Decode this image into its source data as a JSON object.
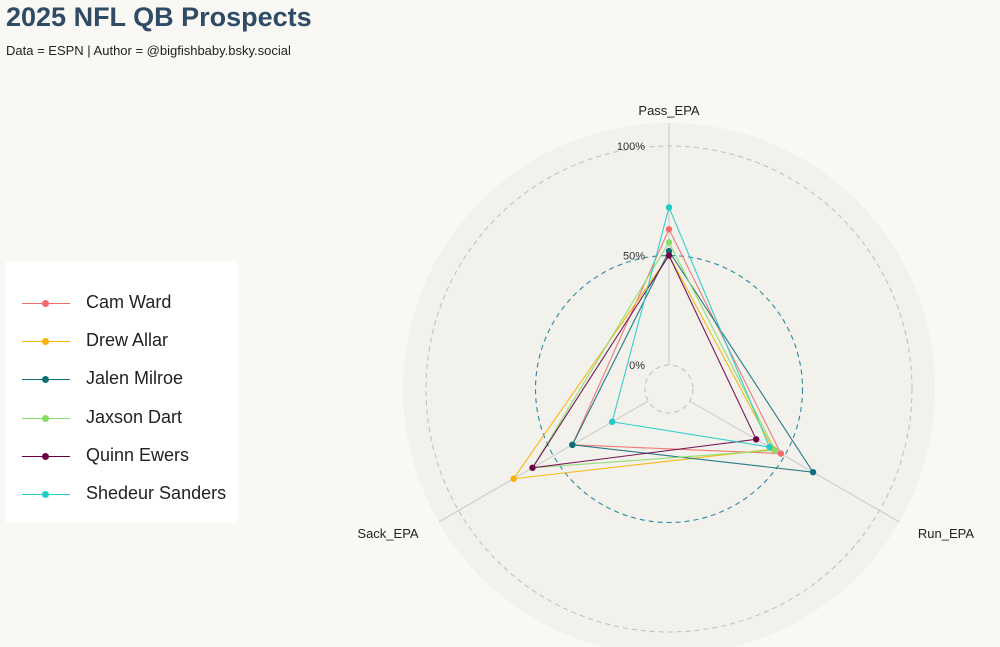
{
  "header": {
    "title": "2025 NFL QB Prospects",
    "subtitle": "Data = ESPN | Author = @bigfishbaby.bsky.social"
  },
  "chart_data": {
    "type": "radar",
    "title": "2025 NFL QB Prospects",
    "axes": [
      "Pass_EPA",
      "Run_EPA",
      "Sack_EPA"
    ],
    "radial_ticks": [
      "0%",
      "50%",
      "100%"
    ],
    "rlim": [
      0,
      1
    ],
    "legend_position": "left",
    "series": [
      {
        "name": "Cam Ward",
        "color": "#f26b6b",
        "values": [
          0.62,
          0.48,
          0.4
        ]
      },
      {
        "name": "Drew Allar",
        "color": "#f5b400",
        "values": [
          0.5,
          0.44,
          0.71
        ]
      },
      {
        "name": "Jalen Milroe",
        "color": "#0e6f7a",
        "values": [
          0.52,
          0.65,
          0.4
        ]
      },
      {
        "name": "Jaxson Dart",
        "color": "#88dd66",
        "values": [
          0.56,
          0.45,
          0.61
        ]
      },
      {
        "name": "Quinn Ewers",
        "color": "#6b0047",
        "values": [
          0.5,
          0.35,
          0.61
        ]
      },
      {
        "name": "Shedeur Sanders",
        "color": "#22cbc6",
        "values": [
          0.72,
          0.42,
          0.19
        ]
      }
    ]
  }
}
